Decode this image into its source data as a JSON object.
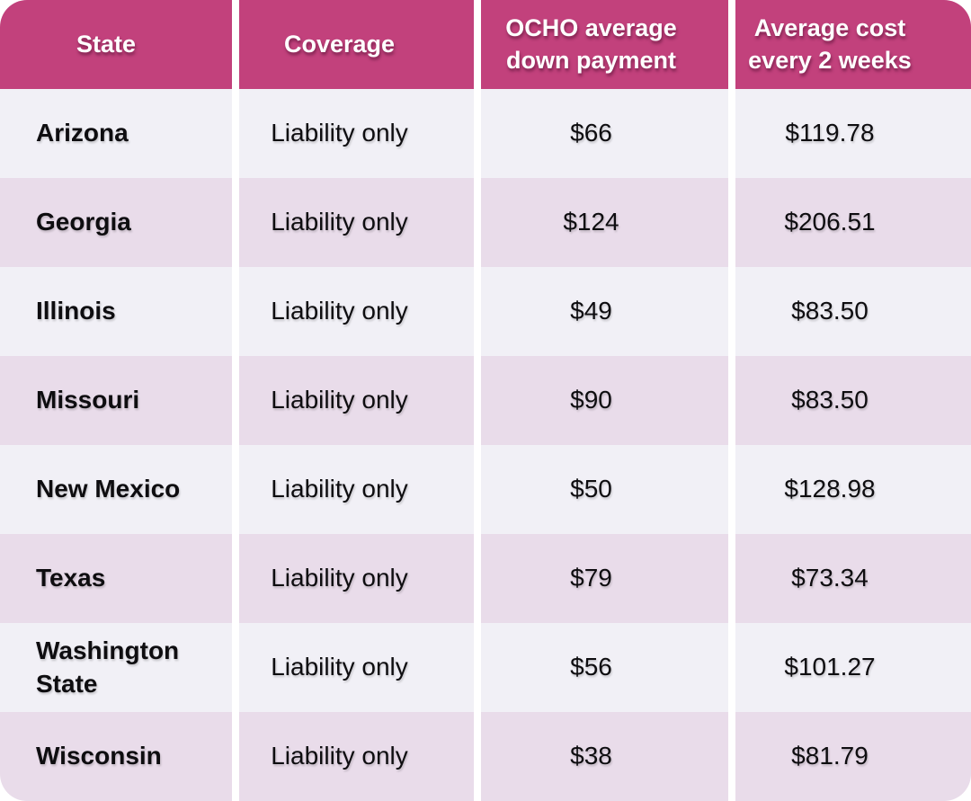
{
  "colors": {
    "header_bg": "#c2417c",
    "row_light": "#f1f0f6",
    "row_pink": "#e9dcea",
    "gutter": "#ffffff",
    "header_text": "#ffffff",
    "body_text": "#0e0d10"
  },
  "chart_data": {
    "type": "table",
    "legend_position": "none",
    "grid": "off",
    "columns": [
      "State",
      "Coverage",
      "OCHO average down payment",
      "Average cost every 2 weeks"
    ],
    "rows": [
      [
        "Arizona",
        "Liability only",
        "$66",
        "$119.78"
      ],
      [
        "Georgia",
        "Liability only",
        "$124",
        "$206.51"
      ],
      [
        "Illinois",
        "Liability only",
        "$49",
        "$83.50"
      ],
      [
        "Missouri",
        "Liability only",
        "$90",
        "$83.50"
      ],
      [
        "New Mexico",
        "Liability only",
        "$50",
        "$128.98"
      ],
      [
        "Texas",
        "Liability only",
        "$79",
        "$73.34"
      ],
      [
        "Washington State",
        "Liability only",
        "$56",
        "$101.27"
      ],
      [
        "Wisconsin",
        "Liability only",
        "$38",
        "$81.79"
      ]
    ]
  }
}
